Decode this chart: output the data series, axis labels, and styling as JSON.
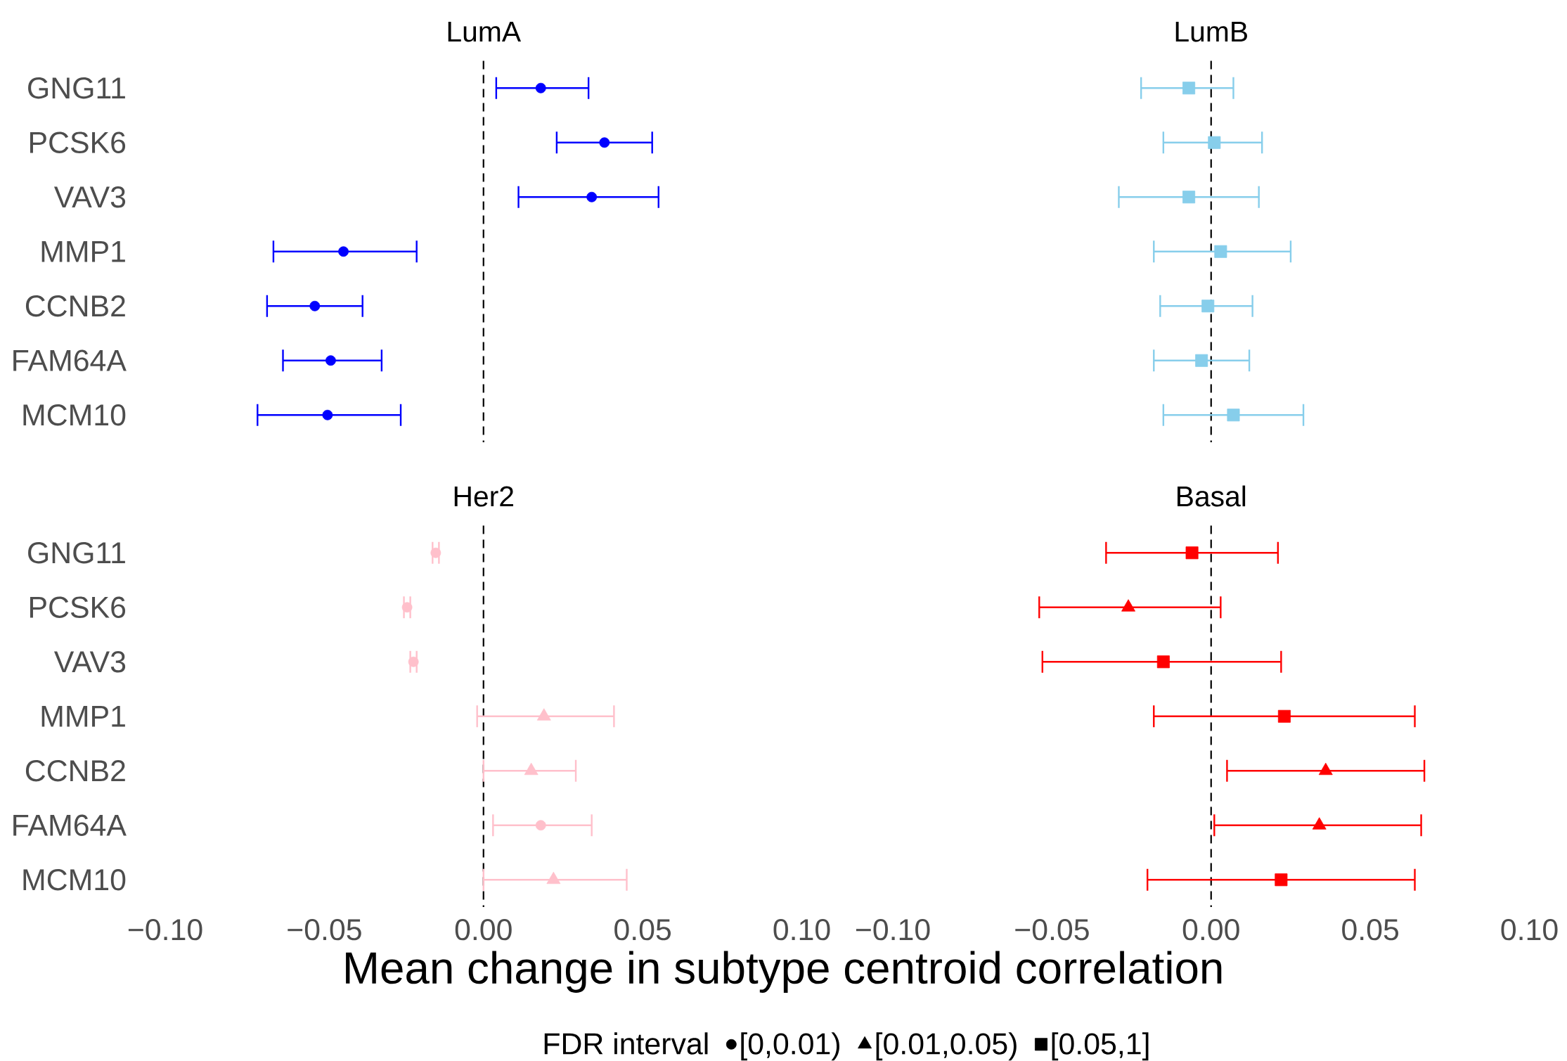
{
  "chart_data": [
    {
      "type": "scatter",
      "title": "LumA",
      "orientation": "horizontal",
      "categories": [
        "GNG11",
        "PCSK6",
        "VAV3",
        "MMP1",
        "CCNB2",
        "FAM64A",
        "MCM10"
      ],
      "xlim": [
        -0.1,
        0.1
      ],
      "tick_labels": "y",
      "ref_lines": [
        {
          "axis": "x",
          "value": 0,
          "line_style": "dashed",
          "color": "#000000"
        }
      ],
      "series": [
        {
          "color": "#0000ff",
          "marker": "circle",
          "values": [
            0.018,
            0.038,
            0.034,
            -0.044,
            -0.053,
            -0.048,
            -0.049
          ],
          "errors": [
            [
              0.004,
              0.033
            ],
            [
              0.023,
              0.053
            ],
            [
              0.011,
              0.055
            ],
            [
              -0.066,
              -0.021
            ],
            [
              -0.068,
              -0.038
            ],
            [
              -0.063,
              -0.032
            ],
            [
              -0.071,
              -0.026
            ]
          ]
        }
      ]
    },
    {
      "type": "scatter",
      "title": "LumB",
      "orientation": "horizontal",
      "categories": [
        null,
        null,
        null,
        null,
        null,
        null,
        null
      ],
      "xlim": [
        -0.1,
        0.1
      ],
      "tick_labels": false,
      "ref_lines": [
        {
          "axis": "x",
          "value": 0,
          "line_style": "dashed",
          "color": "#000000"
        }
      ],
      "series": [
        {
          "color": "#87ceeb",
          "marker": "square",
          "values": [
            -0.007,
            0.001,
            -0.007,
            0.003,
            -0.001,
            -0.003,
            0.007
          ],
          "errors": [
            [
              -0.022,
              0.007
            ],
            [
              -0.015,
              0.016
            ],
            [
              -0.029,
              0.015
            ],
            [
              -0.018,
              0.025
            ],
            [
              -0.016,
              0.013
            ],
            [
              -0.018,
              0.012
            ],
            [
              -0.015,
              0.029
            ]
          ]
        }
      ]
    },
    {
      "type": "scatter",
      "title": "Her2",
      "orientation": "horizontal",
      "categories": [
        "GNG11",
        "PCSK6",
        "VAV3",
        "MMP1",
        "CCNB2",
        "FAM64A",
        "MCM10"
      ],
      "xlim": [
        -0.1,
        0.1
      ],
      "xticks": [
        {
          "value": -0.1,
          "label": "−0.10"
        },
        {
          "value": -0.05,
          "label": "−0.05"
        },
        {
          "value": 0,
          "label": "0.00"
        },
        {
          "value": 0.05,
          "label": "0.05"
        },
        {
          "value": 0.1,
          "label": "0.10"
        }
      ],
      "ref_lines": [
        {
          "axis": "x",
          "value": 0,
          "line_style": "dashed",
          "color": "#000000"
        }
      ],
      "series": [
        {
          "color": "#ffc0cb",
          "marker": "circle",
          "values": [
            -0.015,
            -0.024,
            -0.022,
            null,
            null,
            0.018,
            null
          ],
          "errors": [
            [
              -0.016,
              -0.014
            ],
            [
              -0.025,
              -0.023
            ],
            [
              -0.023,
              -0.021
            ],
            null,
            null,
            [
              0.003,
              0.034
            ],
            null
          ]
        },
        {
          "color": "#ffc0cb",
          "marker": "triangle",
          "values": [
            null,
            null,
            null,
            0.019,
            0.015,
            null,
            0.022
          ],
          "errors": [
            null,
            null,
            null,
            [
              -0.002,
              0.041
            ],
            [
              0.0,
              0.029
            ],
            null,
            [
              0.0,
              0.045
            ]
          ]
        }
      ]
    },
    {
      "type": "scatter",
      "title": "Basal",
      "orientation": "horizontal",
      "categories": [
        null,
        null,
        null,
        null,
        null,
        null,
        null
      ],
      "xlim": [
        -0.1,
        0.1
      ],
      "xticks": [
        {
          "value": -0.1,
          "label": "−0.10"
        },
        {
          "value": -0.05,
          "label": "−0.05"
        },
        {
          "value": 0,
          "label": "0.00"
        },
        {
          "value": 0.05,
          "label": "0.05"
        },
        {
          "value": 0.1,
          "label": "0.10"
        }
      ],
      "tick_labels": "x",
      "xlabel": "Mean change in subtype centroid correlation",
      "legend": "bottom",
      "legend_title": "FDR interval",
      "ref_lines": [
        {
          "axis": "x",
          "value": 0,
          "line_style": "dashed",
          "color": "#000000"
        }
      ],
      "series": [
        {
          "name": "[0,0.01)",
          "color": "#000000",
          "marker": "circle",
          "values": [
            null,
            null,
            null,
            null,
            null,
            null,
            null
          ]
        },
        {
          "name": "[0.01,0.05)",
          "color": "#000000",
          "marker": "triangle",
          "values": [
            null,
            null,
            null,
            null,
            null,
            null,
            null
          ]
        },
        {
          "name": "[0.05,1]",
          "color": "#000000",
          "marker": "square",
          "values": [
            null,
            null,
            null,
            null,
            null,
            null,
            null
          ]
        },
        {
          "color": "#ff0000",
          "marker": "triangle",
          "values": [
            null,
            -0.026,
            null,
            null,
            0.036,
            0.034,
            null
          ],
          "errors": [
            null,
            [
              -0.054,
              0.003
            ],
            null,
            null,
            [
              0.005,
              0.067
            ],
            [
              0.001,
              0.066
            ],
            null
          ]
        },
        {
          "color": "#ff0000",
          "marker": "square",
          "values": [
            -0.006,
            null,
            -0.015,
            0.023,
            null,
            null,
            0.022
          ],
          "errors": [
            [
              -0.033,
              0.021
            ],
            null,
            [
              -0.053,
              0.022
            ],
            [
              -0.018,
              0.064
            ],
            null,
            null,
            [
              -0.02,
              0.064
            ]
          ]
        }
      ]
    }
  ]
}
